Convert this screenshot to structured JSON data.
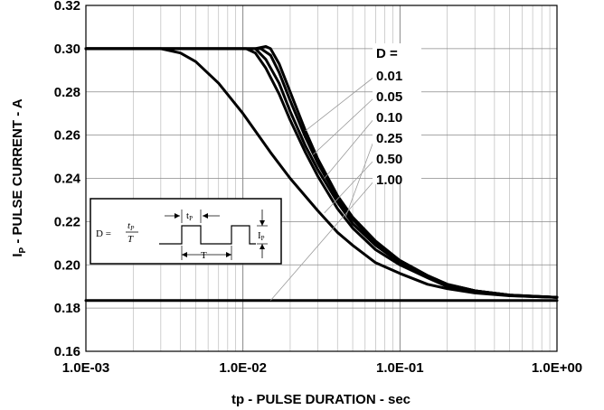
{
  "chart_data": {
    "type": "line",
    "xlabel": "tp - PULSE DURATION - sec",
    "ylabel_main": "I",
    "ylabel_sub": "P",
    "ylabel_rest": " - PULSE CURRENT - A",
    "xscale": "log",
    "xlim": [
      0.001,
      1.0
    ],
    "ylim": [
      0.16,
      0.32
    ],
    "x_tick_labels": [
      "1.0E-03",
      "1.0E-02",
      "1.0E-01",
      "1.0E+00"
    ],
    "y_tick_labels": [
      "0.16",
      "0.18",
      "0.20",
      "0.22",
      "0.24",
      "0.26",
      "0.28",
      "0.30",
      "0.32"
    ],
    "y_ticks": [
      0.16,
      0.18,
      0.2,
      0.22,
      0.24,
      0.26,
      0.28,
      0.3,
      0.32
    ],
    "grid": true,
    "legend_title": "D =",
    "series": [
      {
        "name": "0.01",
        "x": [
          0.001,
          0.012,
          0.014,
          0.015,
          0.017,
          0.02,
          0.025,
          0.03,
          0.04,
          0.05,
          0.07,
          0.1,
          0.15,
          0.2,
          0.3,
          0.5,
          0.7,
          1.0
        ],
        "y": [
          0.3,
          0.3,
          0.301,
          0.3,
          0.293,
          0.28,
          0.262,
          0.249,
          0.232,
          0.222,
          0.211,
          0.202,
          0.195,
          0.191,
          0.188,
          0.186,
          0.1855,
          0.185
        ]
      },
      {
        "name": "0.05",
        "x": [
          0.001,
          0.012,
          0.013,
          0.015,
          0.017,
          0.02,
          0.025,
          0.03,
          0.04,
          0.05,
          0.07,
          0.1,
          0.15,
          0.2,
          0.3,
          0.5,
          0.7,
          1.0
        ],
        "y": [
          0.3,
          0.3,
          0.3,
          0.297,
          0.289,
          0.276,
          0.259,
          0.247,
          0.231,
          0.221,
          0.21,
          0.202,
          0.195,
          0.191,
          0.188,
          0.186,
          0.1855,
          0.185
        ]
      },
      {
        "name": "0.10",
        "x": [
          0.001,
          0.011,
          0.012,
          0.014,
          0.017,
          0.02,
          0.025,
          0.03,
          0.04,
          0.05,
          0.07,
          0.1,
          0.15,
          0.2,
          0.3,
          0.5,
          0.7,
          1.0
        ],
        "y": [
          0.3,
          0.3,
          0.3,
          0.295,
          0.284,
          0.271,
          0.255,
          0.244,
          0.229,
          0.219,
          0.209,
          0.201,
          0.195,
          0.191,
          0.188,
          0.186,
          0.1855,
          0.185
        ]
      },
      {
        "name": "0.25",
        "x": [
          0.001,
          0.0105,
          0.012,
          0.014,
          0.017,
          0.02,
          0.025,
          0.03,
          0.04,
          0.05,
          0.07,
          0.1,
          0.15,
          0.2,
          0.3,
          0.5,
          0.7,
          1.0
        ],
        "y": [
          0.3,
          0.3,
          0.298,
          0.291,
          0.279,
          0.267,
          0.252,
          0.241,
          0.226,
          0.217,
          0.207,
          0.2,
          0.194,
          0.19,
          0.1875,
          0.1858,
          0.1853,
          0.185
        ]
      },
      {
        "name": "0.50",
        "x": [
          0.001,
          0.003,
          0.004,
          0.005,
          0.007,
          0.01,
          0.015,
          0.02,
          0.03,
          0.04,
          0.05,
          0.07,
          0.1,
          0.15,
          0.2,
          0.3,
          0.5,
          0.7,
          1.0
        ],
        "y": [
          0.3,
          0.3,
          0.298,
          0.294,
          0.284,
          0.27,
          0.252,
          0.24,
          0.225,
          0.215,
          0.209,
          0.201,
          0.196,
          0.191,
          0.189,
          0.187,
          0.1857,
          0.1853,
          0.185
        ]
      },
      {
        "name": "1.00",
        "x": [
          0.001,
          1.0
        ],
        "y": [
          0.1835,
          0.1835
        ]
      }
    ]
  },
  "inset": {
    "formula_lhs": "D = ",
    "formula_num": "t",
    "formula_num_sub": "P",
    "formula_den": "T",
    "tp_label": "t",
    "tp_sub": "P",
    "period_label": "T",
    "ip_label": "I",
    "ip_sub": "P"
  }
}
